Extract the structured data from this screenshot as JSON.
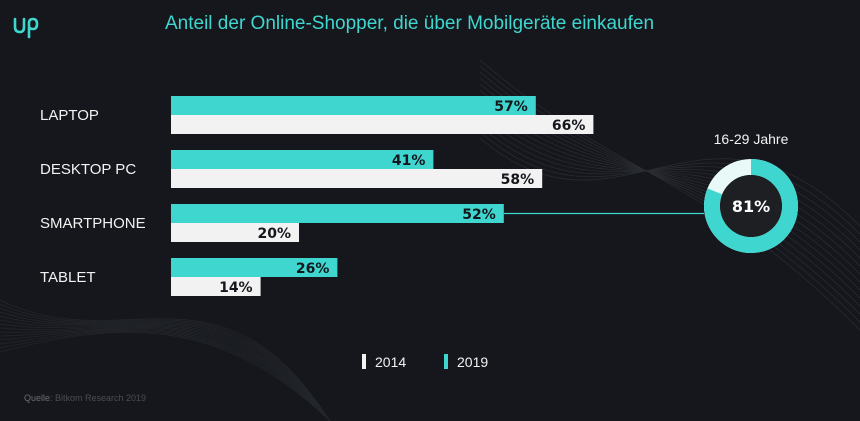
{
  "header": {
    "logo_text": "up",
    "title": "Anteil der Online-Shopper, die über Mobilgeräte einkaufen"
  },
  "colors": {
    "accent": "#3fd6d0",
    "light": "#f2f2f2",
    "background": "#15171c",
    "donut_center": "#1e1f23"
  },
  "chart_data": [
    {
      "type": "bar",
      "orientation": "horizontal",
      "title": "Anteil der Online-Shopper, die über Mobilgeräte einkaufen",
      "categories": [
        "LAPTOP",
        "DESKTOP PC",
        "SMARTPHONE",
        "TABLET"
      ],
      "series": [
        {
          "name": "2019",
          "values": [
            57,
            41,
            52,
            26
          ],
          "labels": [
            "57%",
            "41%",
            "52%",
            "26%"
          ],
          "color": "#3fd6d0"
        },
        {
          "name": "2014",
          "values": [
            66,
            58,
            20,
            14
          ],
          "labels": [
            "66%",
            "58%",
            "20%",
            "14%"
          ],
          "color": "#f2f2f2"
        }
      ],
      "xlim": [
        0,
        100
      ],
      "legend": [
        "2014",
        "2019"
      ]
    },
    {
      "type": "pie",
      "style": "donut",
      "title": "16-29 Jahre",
      "value": 81,
      "label": "81%",
      "relates_to": "SMARTPHONE"
    }
  ],
  "source": {
    "label": "Quelle",
    "text": ": Bitkom Research 2019"
  }
}
